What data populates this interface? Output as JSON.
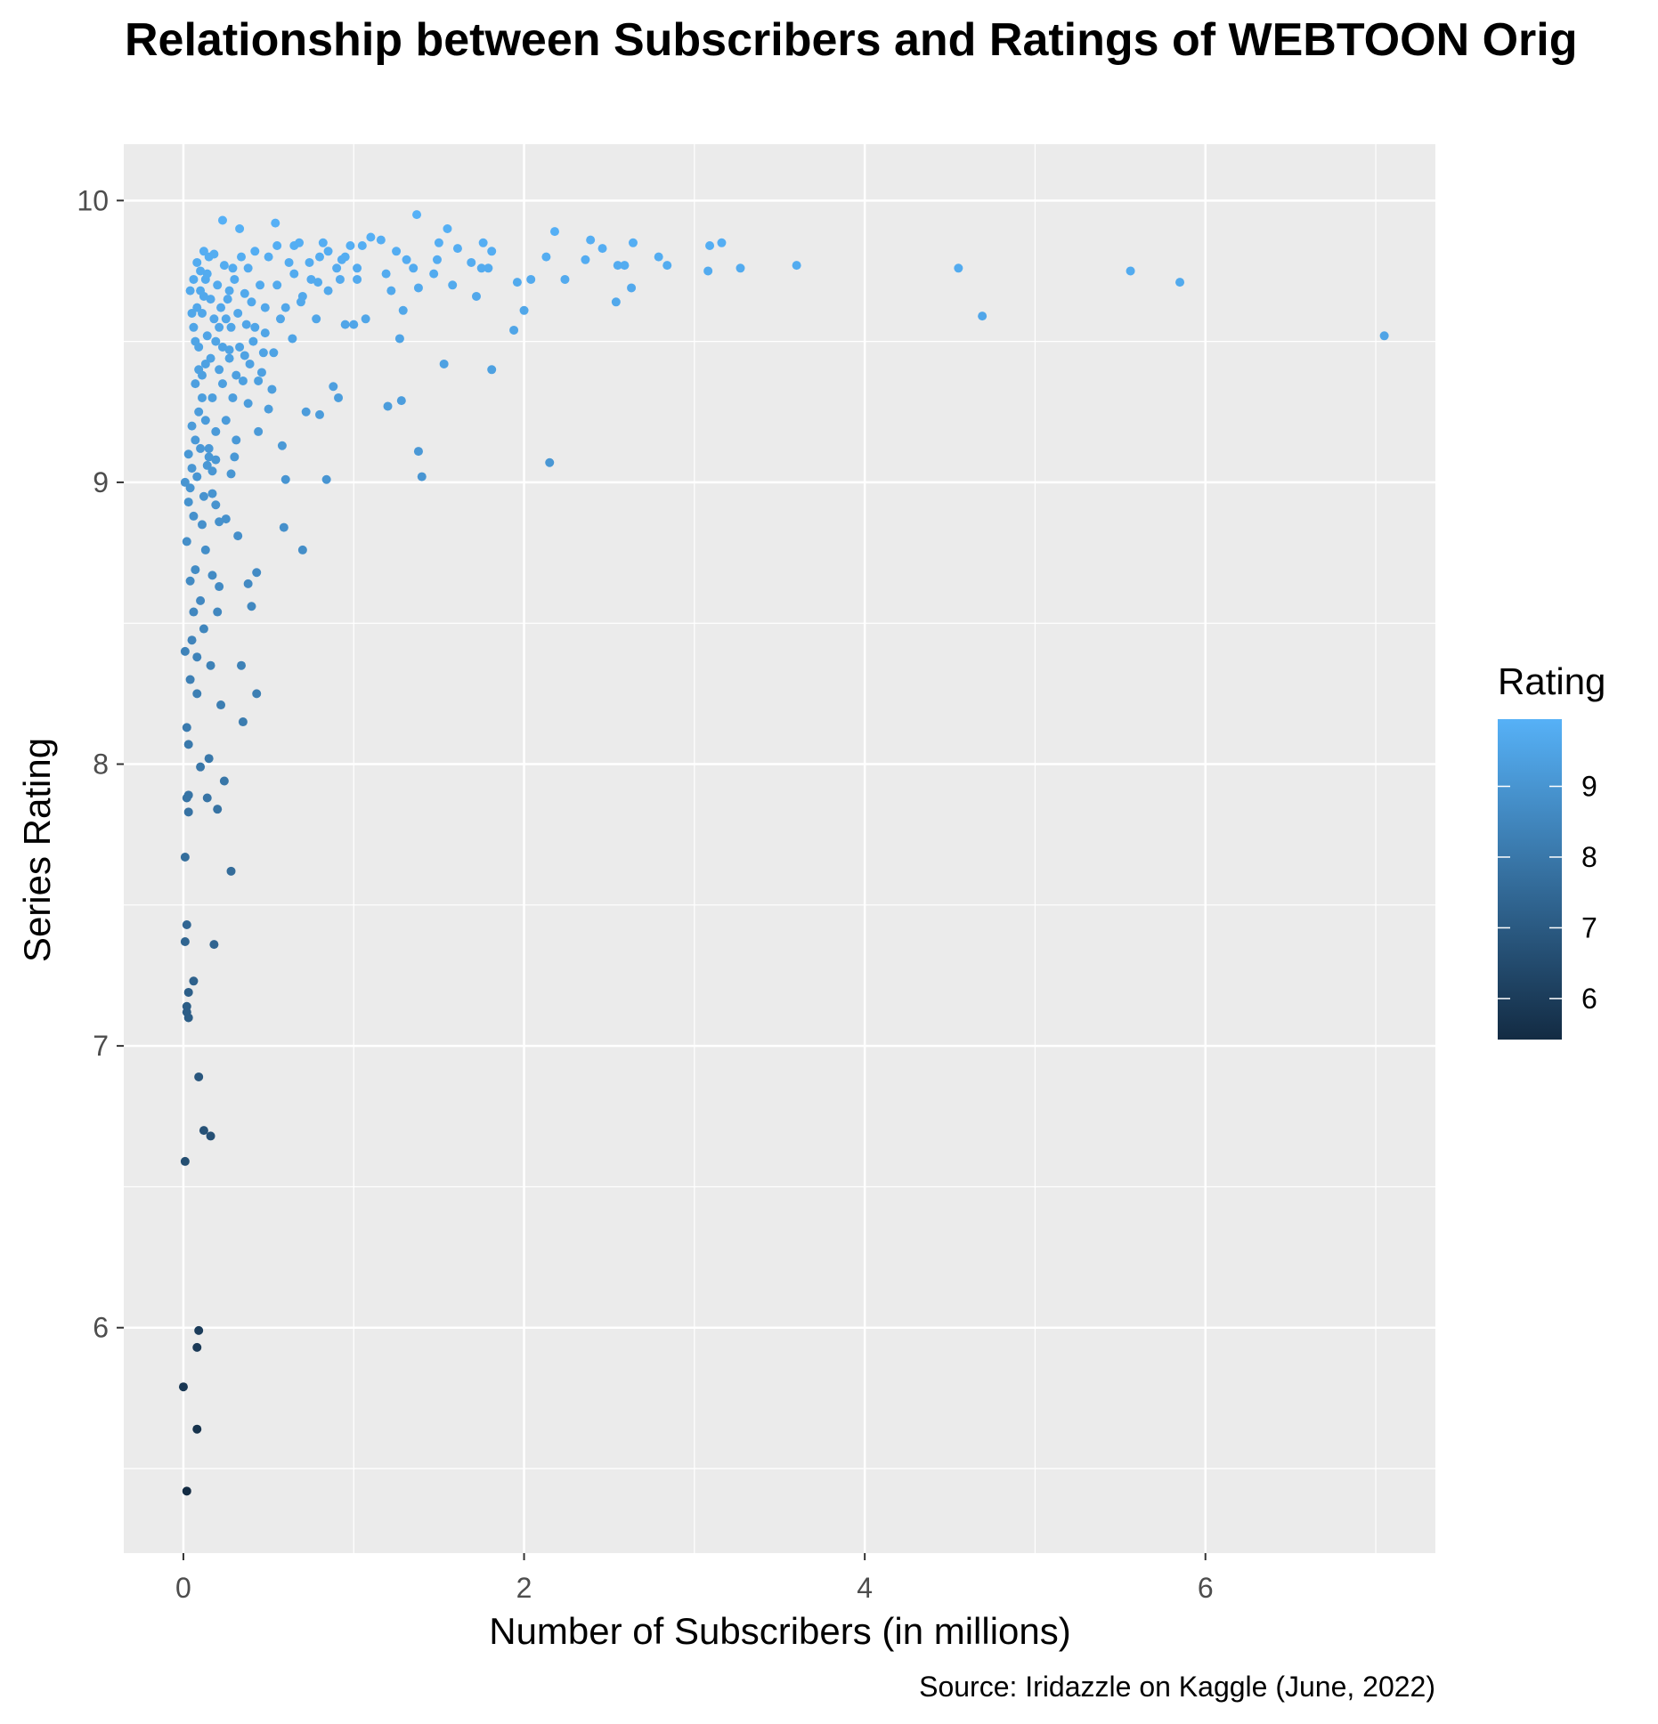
{
  "chart_data": {
    "type": "scatter",
    "title": "Relationship between Subscribers and Ratings of WEBTOON Orig",
    "xlabel": "Number of Subscribers (in millions)",
    "ylabel": "Series Rating",
    "caption": "Source: Iridazzle on Kaggle (June, 2022)",
    "xlim": [
      -0.35,
      7.35
    ],
    "ylim": [
      5.2,
      10.2
    ],
    "x_ticks": [
      "0",
      "2",
      "4",
      "6"
    ],
    "y_ticks": [
      "6",
      "7",
      "8",
      "9",
      "10"
    ],
    "grid": true,
    "legend": {
      "title": "Rating",
      "position": "right",
      "labels": [
        "9",
        "8",
        "7",
        "6"
      ],
      "low_color": "#132b43",
      "high_color": "#56b1f7",
      "range": [
        5.42,
        9.95
      ]
    },
    "points": [
      [
        7.05,
        9.52
      ],
      [
        5.85,
        9.71
      ],
      [
        5.56,
        9.75
      ],
      [
        4.69,
        9.59
      ],
      [
        4.55,
        9.76
      ],
      [
        3.6,
        9.77
      ],
      [
        3.27,
        9.76
      ],
      [
        3.16,
        9.85
      ],
      [
        3.09,
        9.84
      ],
      [
        3.08,
        9.75
      ],
      [
        2.84,
        9.77
      ],
      [
        2.79,
        9.8
      ],
      [
        2.64,
        9.85
      ],
      [
        2.63,
        9.69
      ],
      [
        2.59,
        9.77
      ],
      [
        2.55,
        9.77
      ],
      [
        2.54,
        9.64
      ],
      [
        2.46,
        9.83
      ],
      [
        2.39,
        9.86
      ],
      [
        2.36,
        9.79
      ],
      [
        2.24,
        9.72
      ],
      [
        2.18,
        9.89
      ],
      [
        2.15,
        9.07
      ],
      [
        2.13,
        9.8
      ],
      [
        2.04,
        9.72
      ],
      [
        2.0,
        9.61
      ],
      [
        1.96,
        9.71
      ],
      [
        1.94,
        9.54
      ],
      [
        1.81,
        9.4
      ],
      [
        1.81,
        9.82
      ],
      [
        1.79,
        9.76
      ],
      [
        1.76,
        9.85
      ],
      [
        1.75,
        9.76
      ],
      [
        1.72,
        9.66
      ],
      [
        1.69,
        9.78
      ],
      [
        1.61,
        9.83
      ],
      [
        1.58,
        9.7
      ],
      [
        1.55,
        9.9
      ],
      [
        1.53,
        9.42
      ],
      [
        1.5,
        9.85
      ],
      [
        1.49,
        9.79
      ],
      [
        1.47,
        9.74
      ],
      [
        1.4,
        9.02
      ],
      [
        1.38,
        9.69
      ],
      [
        1.38,
        9.11
      ],
      [
        1.37,
        9.95
      ],
      [
        1.35,
        9.76
      ],
      [
        1.31,
        9.79
      ],
      [
        1.29,
        9.61
      ],
      [
        1.28,
        9.29
      ],
      [
        1.27,
        9.51
      ],
      [
        1.25,
        9.82
      ],
      [
        1.22,
        9.68
      ],
      [
        1.2,
        9.27
      ],
      [
        1.19,
        9.74
      ],
      [
        1.16,
        9.86
      ],
      [
        1.1,
        9.87
      ],
      [
        1.07,
        9.58
      ],
      [
        1.05,
        9.84
      ],
      [
        1.02,
        9.72
      ],
      [
        1.0,
        9.56
      ],
      [
        0.98,
        9.84
      ],
      [
        0.95,
        9.56
      ],
      [
        0.93,
        9.79
      ],
      [
        0.92,
        9.72
      ],
      [
        0.91,
        9.3
      ],
      [
        0.88,
        9.34
      ],
      [
        0.85,
        9.82
      ],
      [
        0.84,
        9.01
      ],
      [
        0.82,
        9.85
      ],
      [
        0.8,
        9.24
      ],
      [
        0.79,
        9.71
      ],
      [
        0.78,
        9.58
      ],
      [
        0.74,
        9.78
      ],
      [
        0.72,
        9.25
      ],
      [
        0.7,
        8.76
      ],
      [
        0.69,
        9.64
      ],
      [
        0.68,
        9.85
      ],
      [
        0.65,
        9.84
      ],
      [
        0.64,
        9.51
      ],
      [
        0.62,
        9.78
      ],
      [
        0.6,
        9.01
      ],
      [
        0.59,
        8.84
      ],
      [
        0.58,
        9.13
      ],
      [
        0.57,
        9.58
      ],
      [
        0.55,
        9.84
      ],
      [
        0.54,
        9.92
      ],
      [
        0.53,
        9.46
      ],
      [
        0.52,
        9.33
      ],
      [
        0.5,
        9.26
      ],
      [
        0.48,
        9.53
      ],
      [
        0.46,
        9.39
      ],
      [
        0.44,
        9.18
      ],
      [
        0.43,
        8.68
      ],
      [
        0.43,
        8.25
      ],
      [
        0.42,
        9.82
      ],
      [
        0.4,
        8.56
      ],
      [
        0.38,
        9.28
      ],
      [
        0.38,
        8.64
      ],
      [
        0.36,
        9.67
      ],
      [
        0.35,
        8.15
      ],
      [
        0.34,
        8.35
      ],
      [
        0.33,
        9.9
      ],
      [
        0.32,
        8.81
      ],
      [
        0.31,
        9.15
      ],
      [
        0.3,
        9.09
      ],
      [
        0.28,
        7.62
      ],
      [
        0.28,
        9.03
      ],
      [
        0.27,
        9.47
      ],
      [
        0.25,
        8.87
      ],
      [
        0.24,
        7.94
      ],
      [
        0.23,
        9.93
      ],
      [
        0.22,
        8.21
      ],
      [
        0.21,
        8.63
      ],
      [
        0.2,
        8.54
      ],
      [
        0.2,
        7.84
      ],
      [
        0.19,
        8.92
      ],
      [
        0.18,
        7.36
      ],
      [
        0.17,
        8.67
      ],
      [
        0.16,
        6.68
      ],
      [
        0.16,
        8.35
      ],
      [
        0.15,
        8.02
      ],
      [
        0.15,
        9.09
      ],
      [
        0.14,
        7.88
      ],
      [
        0.13,
        8.76
      ],
      [
        0.12,
        6.7
      ],
      [
        0.12,
        8.48
      ],
      [
        0.11,
        8.85
      ],
      [
        0.1,
        8.58
      ],
      [
        0.1,
        7.99
      ],
      [
        0.09,
        6.89
      ],
      [
        0.09,
        5.99
      ],
      [
        0.08,
        5.93
      ],
      [
        0.08,
        5.64
      ],
      [
        0.08,
        8.25
      ],
      [
        0.08,
        8.38
      ],
      [
        0.07,
        8.69
      ],
      [
        0.06,
        8.54
      ],
      [
        0.06,
        7.23
      ],
      [
        0.05,
        8.44
      ],
      [
        0.04,
        8.65
      ],
      [
        0.04,
        8.3
      ],
      [
        0.03,
        8.07
      ],
      [
        0.03,
        7.89
      ],
      [
        0.03,
        7.83
      ],
      [
        0.03,
        7.19
      ],
      [
        0.03,
        7.1
      ],
      [
        0.02,
        8.13
      ],
      [
        0.02,
        7.88
      ],
      [
        0.02,
        7.43
      ],
      [
        0.02,
        7.14
      ],
      [
        0.02,
        7.12
      ],
      [
        0.02,
        5.42
      ],
      [
        0.01,
        8.4
      ],
      [
        0.01,
        7.67
      ],
      [
        0.01,
        7.37
      ],
      [
        0.01,
        6.59
      ],
      [
        0.0,
        5.79
      ],
      [
        0.01,
        9.0
      ],
      [
        0.02,
        8.79
      ],
      [
        0.03,
        8.93
      ],
      [
        0.05,
        9.2
      ],
      [
        0.07,
        9.35
      ],
      [
        0.09,
        9.48
      ],
      [
        0.11,
        9.6
      ],
      [
        0.13,
        9.72
      ],
      [
        0.15,
        9.8
      ],
      [
        0.04,
        9.68
      ],
      [
        0.06,
        9.55
      ],
      [
        0.08,
        9.62
      ],
      [
        0.1,
        9.75
      ],
      [
        0.12,
        9.66
      ],
      [
        0.14,
        9.52
      ],
      [
        0.16,
        9.44
      ],
      [
        0.18,
        9.58
      ],
      [
        0.2,
        9.7
      ],
      [
        0.22,
        9.62
      ],
      [
        0.24,
        9.77
      ],
      [
        0.26,
        9.65
      ],
      [
        0.28,
        9.55
      ],
      [
        0.3,
        9.72
      ],
      [
        0.32,
        9.6
      ],
      [
        0.34,
        9.8
      ],
      [
        0.36,
        9.45
      ],
      [
        0.38,
        9.76
      ],
      [
        0.4,
        9.64
      ],
      [
        0.42,
        9.55
      ],
      [
        0.45,
        9.7
      ],
      [
        0.48,
        9.62
      ],
      [
        0.5,
        9.8
      ],
      [
        0.55,
        9.7
      ],
      [
        0.6,
        9.62
      ],
      [
        0.65,
        9.74
      ],
      [
        0.7,
        9.66
      ],
      [
        0.75,
        9.72
      ],
      [
        0.8,
        9.8
      ],
      [
        0.85,
        9.68
      ],
      [
        0.9,
        9.76
      ],
      [
        0.95,
        9.8
      ],
      [
        1.02,
        9.76
      ],
      [
        0.05,
        9.05
      ],
      [
        0.07,
        9.15
      ],
      [
        0.09,
        9.25
      ],
      [
        0.11,
        9.38
      ],
      [
        0.13,
        9.42
      ],
      [
        0.17,
        9.3
      ],
      [
        0.19,
        9.18
      ],
      [
        0.21,
        9.4
      ],
      [
        0.23,
        9.35
      ],
      [
        0.25,
        9.22
      ],
      [
        0.27,
        9.44
      ],
      [
        0.29,
        9.3
      ],
      [
        0.31,
        9.38
      ],
      [
        0.33,
        9.48
      ],
      [
        0.35,
        9.36
      ],
      [
        0.37,
        9.56
      ],
      [
        0.39,
        9.42
      ],
      [
        0.41,
        9.5
      ],
      [
        0.44,
        9.36
      ],
      [
        0.47,
        9.46
      ],
      [
        0.03,
        9.1
      ],
      [
        0.04,
        8.98
      ],
      [
        0.06,
        8.88
      ],
      [
        0.08,
        9.02
      ],
      [
        0.1,
        9.12
      ],
      [
        0.12,
        8.95
      ],
      [
        0.14,
        9.06
      ],
      [
        0.17,
        8.96
      ],
      [
        0.19,
        9.08
      ],
      [
        0.21,
        8.86
      ],
      [
        0.06,
        9.72
      ],
      [
        0.08,
        9.78
      ],
      [
        0.1,
        9.68
      ],
      [
        0.12,
        9.82
      ],
      [
        0.14,
        9.74
      ],
      [
        0.16,
        9.65
      ],
      [
        0.18,
        9.81
      ],
      [
        0.05,
        9.6
      ],
      [
        0.07,
        9.5
      ],
      [
        0.09,
        9.4
      ],
      [
        0.11,
        9.3
      ],
      [
        0.13,
        9.22
      ],
      [
        0.15,
        9.12
      ],
      [
        0.17,
        9.04
      ],
      [
        0.19,
        9.5
      ],
      [
        0.21,
        9.55
      ],
      [
        0.23,
        9.48
      ],
      [
        0.25,
        9.58
      ],
      [
        0.27,
        9.68
      ],
      [
        0.29,
        9.76
      ]
    ]
  }
}
